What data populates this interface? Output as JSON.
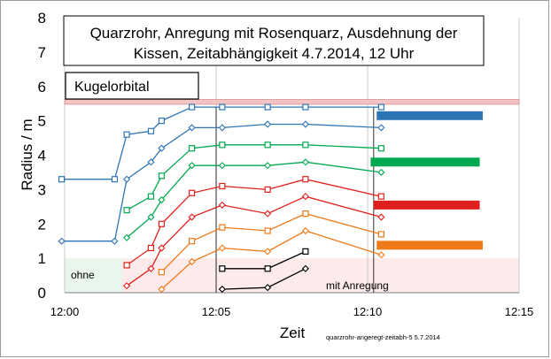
{
  "chart_data": {
    "type": "line",
    "title": "Quarzrohr, Anregung mit Rosenquarz,  Ausdehnung der\nKissen, Zeitabhängigkeit 4.7.2014, 12 Uhr",
    "xlabel": "Zeit",
    "ylabel": "Radius / m",
    "footnote": "quarzrohr-angeregt-zeitabh-5  5.7.2014",
    "x_ticks": [
      "12:00",
      "12:05",
      "12:10",
      "12:15"
    ],
    "xlim_min": [
      0,
      15
    ],
    "ylim": [
      0,
      8
    ],
    "y_ticks": [
      0,
      1,
      2,
      3,
      4,
      5,
      6,
      7,
      8
    ],
    "grid": "vertical",
    "annotations": {
      "kugelorbital": "Kugelorbital",
      "ohne": "ohne",
      "mit_anregung": "mit   Anregung"
    },
    "regions": [
      {
        "x0": 0,
        "x1": 1.9,
        "y0": 0,
        "y1": 1.0,
        "color": "#e8f6ec"
      },
      {
        "x0": 1.9,
        "x1": 15,
        "y0": 0,
        "y1": 1.0,
        "color": "#fdeaea"
      }
    ],
    "kugelorbital_band": {
      "y0": 5.48,
      "y1": 5.62,
      "color": "#f2c4c4"
    },
    "vertical_markers_min": [
      5,
      10.2
    ],
    "colors": {
      "blue": "#2e75b6",
      "green": "#00a850",
      "red": "#e0201c",
      "orange": "#ee7a1a",
      "black": "#000000"
    },
    "series": [
      {
        "color": "#2e75b6",
        "marker": "square",
        "x": [
          -0.1,
          1.65,
          2.05,
          2.85,
          3.2,
          4.2,
          5.2,
          6.7,
          7.95,
          10.45
        ],
        "y": [
          3.3,
          3.3,
          4.6,
          4.7,
          5.0,
          5.4,
          5.4,
          5.4,
          5.4,
          5.4
        ]
      },
      {
        "color": "#2e75b6",
        "marker": "diamond",
        "x": [
          -0.1,
          1.65,
          2.05,
          2.85,
          3.2,
          4.2,
          5.2,
          6.7,
          7.95,
          10.45
        ],
        "y": [
          1.5,
          1.5,
          3.3,
          3.8,
          4.2,
          4.8,
          4.8,
          4.9,
          4.9,
          4.8
        ]
      },
      {
        "color": "#00a850",
        "marker": "square",
        "x": [
          2.05,
          2.85,
          3.2,
          4.2,
          5.2,
          6.7,
          7.95,
          10.45
        ],
        "y": [
          2.4,
          2.8,
          3.4,
          4.2,
          4.3,
          4.3,
          4.3,
          4.2
        ]
      },
      {
        "color": "#00a850",
        "marker": "diamond",
        "x": [
          2.05,
          2.85,
          3.2,
          4.2,
          5.2,
          6.7,
          7.95,
          10.45
        ],
        "y": [
          1.6,
          2.2,
          2.7,
          3.7,
          3.7,
          3.7,
          3.8,
          3.5
        ]
      },
      {
        "color": "#e0201c",
        "marker": "square",
        "x": [
          2.05,
          2.85,
          3.2,
          4.2,
          5.2,
          6.7,
          7.95,
          10.45
        ],
        "y": [
          0.8,
          1.3,
          2.0,
          2.9,
          3.1,
          3.0,
          3.3,
          2.8
        ]
      },
      {
        "color": "#e0201c",
        "marker": "diamond",
        "x": [
          2.05,
          2.85,
          3.2,
          4.2,
          5.2,
          6.7,
          7.95,
          10.45
        ],
        "y": [
          0.2,
          0.7,
          1.3,
          2.2,
          2.55,
          2.3,
          2.8,
          2.2
        ]
      },
      {
        "color": "#ee7a1a",
        "marker": "square",
        "x": [
          3.2,
          4.2,
          5.2,
          6.7,
          7.95,
          10.45
        ],
        "y": [
          0.6,
          1.5,
          1.9,
          1.8,
          2.3,
          1.7
        ]
      },
      {
        "color": "#ee7a1a",
        "marker": "diamond",
        "x": [
          3.2,
          4.2,
          5.2,
          6.7,
          7.95,
          10.45
        ],
        "y": [
          0.1,
          0.9,
          1.3,
          1.2,
          1.8,
          1.1
        ]
      },
      {
        "color": "#000000",
        "marker": "square",
        "x": [
          5.2,
          6.7,
          7.95
        ],
        "y": [
          0.7,
          0.7,
          1.2
        ]
      },
      {
        "color": "#000000",
        "marker": "diamond",
        "x": [
          5.2,
          6.7,
          7.95
        ],
        "y": [
          0.1,
          0.15,
          0.7
        ]
      }
    ],
    "bars": [
      {
        "color": "#2e75b6",
        "x0": 10.3,
        "x1": 13.8,
        "y": 5.15
      },
      {
        "color": "#00a850",
        "x0": 10.1,
        "x1": 13.7,
        "y": 3.8
      },
      {
        "color": "#e0201c",
        "x0": 10.2,
        "x1": 13.7,
        "y": 2.55
      },
      {
        "color": "#ee7a1a",
        "x0": 10.3,
        "x1": 13.8,
        "y": 1.38
      }
    ]
  }
}
